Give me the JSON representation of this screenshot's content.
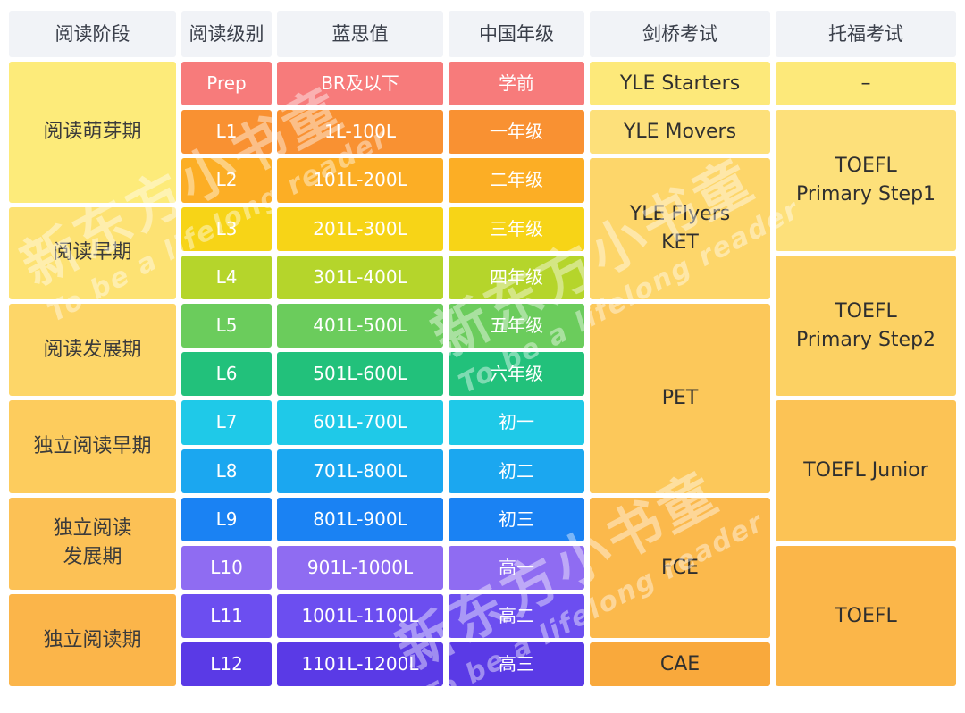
{
  "headers": [
    "阅读阶段",
    "阅读级别",
    "蓝思值",
    "中国年级",
    "剑桥考试",
    "托福考试"
  ],
  "stages": [
    {
      "lines": [
        "阅读萌芽期"
      ],
      "row": 2,
      "span": 3,
      "color": "#fdeb7a"
    },
    {
      "lines": [
        "阅读早期"
      ],
      "row": 5,
      "span": 2,
      "color": "#fde273"
    },
    {
      "lines": [
        "阅读发展期"
      ],
      "row": 7,
      "span": 2,
      "color": "#fdd668"
    },
    {
      "lines": [
        "独立阅读早期"
      ],
      "row": 9,
      "span": 2,
      "color": "#fdcc5d"
    },
    {
      "lines": [
        "独立阅读",
        "发展期"
      ],
      "row": 11,
      "span": 2,
      "color": "#fcc155"
    },
    {
      "lines": [
        "独立阅读期"
      ],
      "row": 13,
      "span": 2,
      "color": "#fbb54a"
    }
  ],
  "levels": [
    {
      "level": "Prep",
      "lexile": "BR及以下",
      "grade": "学前",
      "color": "#f77b7b"
    },
    {
      "level": "L1",
      "lexile": "1L-100L",
      "grade": "一年级",
      "color": "#f99132"
    },
    {
      "level": "L2",
      "lexile": "101L-200L",
      "grade": "二年级",
      "color": "#fcae25"
    },
    {
      "level": "L3",
      "lexile": "201L-300L",
      "grade": "三年级",
      "color": "#f7d417"
    },
    {
      "level": "L4",
      "lexile": "301L-400L",
      "grade": "四年级",
      "color": "#b5d52b"
    },
    {
      "level": "L5",
      "lexile": "401L-500L",
      "grade": "五年级",
      "color": "#6bcc5c"
    },
    {
      "level": "L6",
      "lexile": "501L-600L",
      "grade": "六年级",
      "color": "#22c17b"
    },
    {
      "level": "L7",
      "lexile": "601L-700L",
      "grade": "初一",
      "color": "#1fc9e8"
    },
    {
      "level": "L8",
      "lexile": "701L-800L",
      "grade": "初二",
      "color": "#1ba7f0"
    },
    {
      "level": "L9",
      "lexile": "801L-900L",
      "grade": "初三",
      "color": "#1a82f3"
    },
    {
      "level": "L10",
      "lexile": "901L-1000L",
      "grade": "高一",
      "color": "#8f6cf2"
    },
    {
      "level": "L11",
      "lexile": "1001L-1100L",
      "grade": "高二",
      "color": "#6c4ef0"
    },
    {
      "level": "L12",
      "lexile": "1101L-1200L",
      "grade": "高三",
      "color": "#5a3ae6"
    }
  ],
  "cambridge": [
    {
      "lines": [
        "YLE Starters"
      ],
      "row": 2,
      "span": 1,
      "color": "#fde97a"
    },
    {
      "lines": [
        "YLE Movers"
      ],
      "row": 3,
      "span": 1,
      "color": "#fde07a"
    },
    {
      "lines": [
        "YLE Flyers",
        "KET"
      ],
      "row": 4,
      "span": 3,
      "color": "#fdd66a"
    },
    {
      "lines": [
        "PET"
      ],
      "row": 7,
      "span": 4,
      "color": "#fcc85a"
    },
    {
      "lines": [
        "FCE"
      ],
      "row": 11,
      "span": 3,
      "color": "#fbb94c"
    },
    {
      "lines": [
        "CAE"
      ],
      "row": 14,
      "span": 1,
      "color": "#f9a93c"
    }
  ],
  "toefl": [
    {
      "lines": [
        "–"
      ],
      "row": 2,
      "span": 1,
      "color": "#fde97a"
    },
    {
      "lines": [
        "TOEFL",
        "Primary Step1"
      ],
      "row": 3,
      "span": 3,
      "color": "#fde07a"
    },
    {
      "lines": [
        "TOEFL",
        "Primary Step2"
      ],
      "row": 6,
      "span": 3,
      "color": "#fcd163"
    },
    {
      "lines": [
        "TOEFL Junior"
      ],
      "row": 9,
      "span": 3,
      "color": "#fcc355"
    },
    {
      "lines": [
        "TOEFL"
      ],
      "row": 12,
      "span": 3,
      "color": "#fbb649"
    }
  ],
  "watermark": {
    "brand": "新东方小书童",
    "slogan": "To be a lifelong reader"
  }
}
